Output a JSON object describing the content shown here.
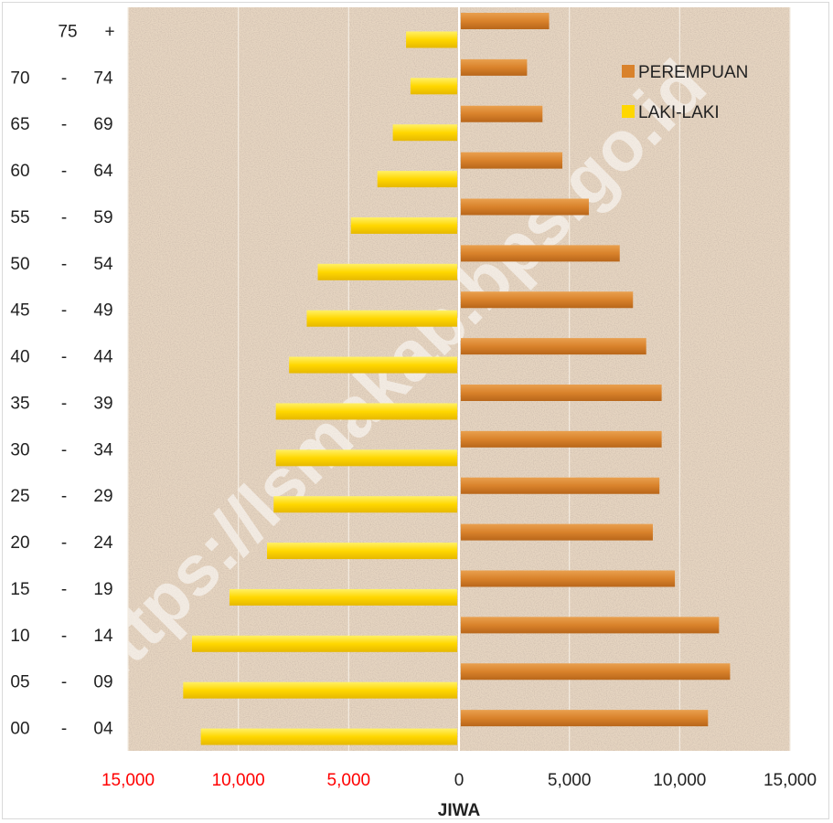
{
  "chart_data": {
    "type": "bar",
    "orientation": "horizontal",
    "categories": [
      {
        "from": "00",
        "sep": "-",
        "to": "04"
      },
      {
        "from": "05",
        "sep": "-",
        "to": "09"
      },
      {
        "from": "10",
        "sep": "-",
        "to": "14"
      },
      {
        "from": "15",
        "sep": "-",
        "to": "19"
      },
      {
        "from": "20",
        "sep": "-",
        "to": "24"
      },
      {
        "from": "25",
        "sep": "-",
        "to": "29"
      },
      {
        "from": "30",
        "sep": "-",
        "to": "34"
      },
      {
        "from": "35",
        "sep": "-",
        "to": "39"
      },
      {
        "from": "40",
        "sep": "-",
        "to": "44"
      },
      {
        "from": "45",
        "sep": "-",
        "to": "49"
      },
      {
        "from": "50",
        "sep": "-",
        "to": "54"
      },
      {
        "from": "55",
        "sep": "-",
        "to": "59"
      },
      {
        "from": "60",
        "sep": "-",
        "to": "64"
      },
      {
        "from": "65",
        "sep": "-",
        "to": "69"
      },
      {
        "from": "70",
        "sep": "-",
        "to": "74"
      },
      {
        "from": "75",
        "sep": "+",
        "to": ""
      }
    ],
    "series": [
      {
        "name": "PEREMPUAN",
        "color": "#d9822b",
        "values": [
          11200,
          12200,
          11700,
          9700,
          8700,
          9000,
          9100,
          9100,
          8400,
          7800,
          7200,
          5800,
          4600,
          3700,
          3000,
          4000
        ]
      },
      {
        "name": "LAKI-LAKI",
        "color": "#ffd700",
        "values": [
          -11700,
          -12500,
          -12100,
          -10400,
          -8700,
          -8400,
          -8300,
          -8300,
          -7700,
          -6900,
          -6400,
          -4900,
          -3700,
          -3000,
          -2200,
          -2400
        ]
      }
    ],
    "legend": {
      "position": "top-right",
      "order": [
        "PEREMPUAN",
        "LAKI-LAKI"
      ]
    },
    "xlabel": "JIWA",
    "xlim": [
      -15000,
      15000
    ],
    "xticks": [
      -15000,
      -10000,
      -5000,
      0,
      5000,
      10000,
      15000
    ],
    "xtick_labels": [
      "15,000",
      "10,000",
      "5,000",
      "0",
      "5,000",
      "10,000",
      "15,000"
    ],
    "negative_tick_color": "#ff0000",
    "positive_tick_color": "#222222",
    "grid": true,
    "plot_background": "textured beige",
    "watermark": "https://lsmakab.bps.go.id"
  }
}
